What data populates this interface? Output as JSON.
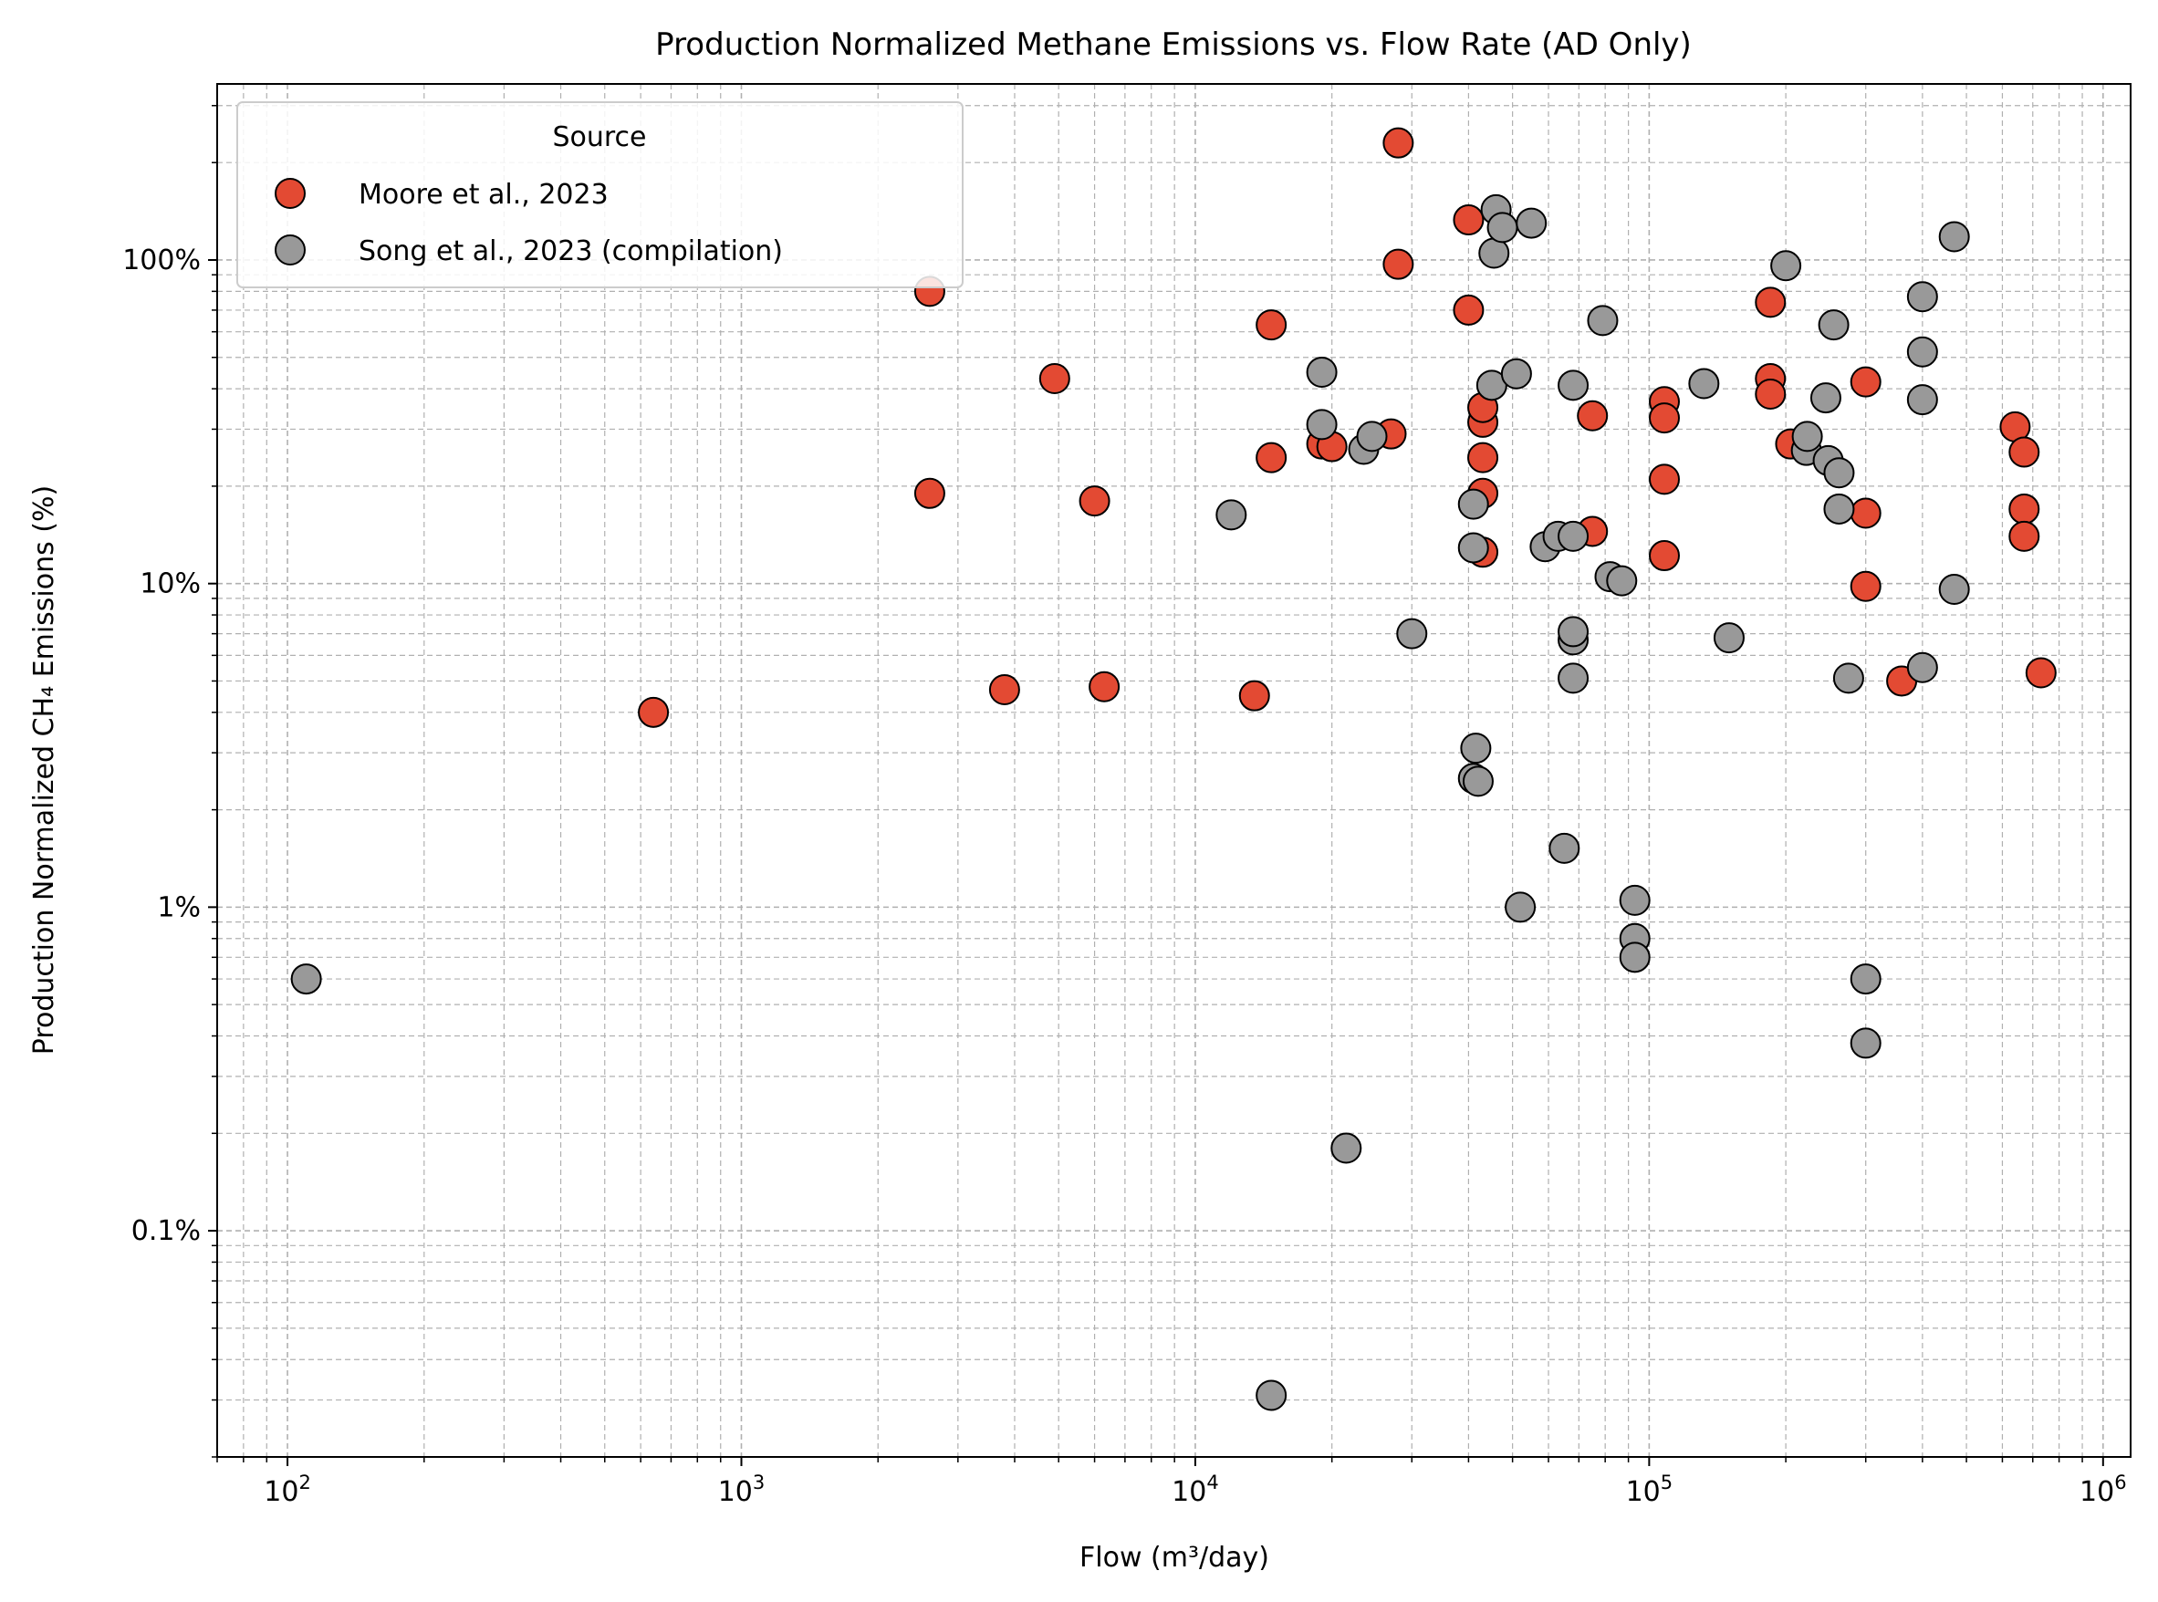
{
  "chart_data": {
    "type": "scatter",
    "title": "Production Normalized Methane Emissions vs. Flow Rate (AD Only)",
    "xlabel": "Flow (m³/day)",
    "ylabel": "Production Normalized CH₄ Emissions (%)",
    "x_scale": "log",
    "y_scale": "log",
    "xlim": [
      70,
      1150000
    ],
    "ylim": [
      0.02,
      350
    ],
    "grid": "both (dashed, major and minor)",
    "legend": {
      "title": "Source",
      "placement": "top-left"
    },
    "x_ticks": [
      {
        "value": 100,
        "base": "10",
        "exp": "2"
      },
      {
        "value": 1000,
        "base": "10",
        "exp": "3"
      },
      {
        "value": 10000,
        "base": "10",
        "exp": "4"
      },
      {
        "value": 100000,
        "base": "10",
        "exp": "5"
      },
      {
        "value": 1000000,
        "base": "10",
        "exp": "6"
      }
    ],
    "y_ticks": [
      {
        "value": 0.1,
        "label": "0.1%"
      },
      {
        "value": 1,
        "label": "1%"
      },
      {
        "value": 10,
        "label": "10%"
      },
      {
        "value": 100,
        "label": "100%"
      }
    ],
    "series": [
      {
        "name": "Moore et al., 2023",
        "color": "#e34a33",
        "points": [
          [
            2600,
            80
          ],
          [
            640,
            4.0
          ],
          [
            2600,
            19
          ],
          [
            3800,
            4.7
          ],
          [
            4900,
            43
          ],
          [
            6000,
            18
          ],
          [
            6300,
            4.8
          ],
          [
            13500,
            4.5
          ],
          [
            14700,
            63
          ],
          [
            14700,
            24.5
          ],
          [
            19000,
            27
          ],
          [
            20000,
            26.5
          ],
          [
            27000,
            29
          ],
          [
            28000,
            230
          ],
          [
            28000,
            97
          ],
          [
            40000,
            133
          ],
          [
            40000,
            70
          ],
          [
            43000,
            12.5
          ],
          [
            43000,
            19
          ],
          [
            43000,
            24.5
          ],
          [
            43000,
            31.5
          ],
          [
            43000,
            35
          ],
          [
            75000,
            33
          ],
          [
            75000,
            14.5
          ],
          [
            108000,
            36.5
          ],
          [
            108000,
            32.5
          ],
          [
            108000,
            21
          ],
          [
            108000,
            12.2
          ],
          [
            185000,
            74
          ],
          [
            185000,
            43
          ],
          [
            185000,
            38.5
          ],
          [
            205000,
            27
          ],
          [
            300000,
            42
          ],
          [
            300000,
            16.5
          ],
          [
            300000,
            9.8
          ],
          [
            360000,
            5.0
          ],
          [
            640000,
            30.5
          ],
          [
            670000,
            25.5
          ],
          [
            670000,
            17
          ],
          [
            670000,
            14
          ],
          [
            730000,
            5.3
          ]
        ]
      },
      {
        "name": "Song et al., 2023 (compilation)",
        "color": "#999999",
        "points": [
          [
            110,
            0.6
          ],
          [
            12000,
            16.3
          ],
          [
            14700,
            0.031
          ],
          [
            19000,
            45
          ],
          [
            19000,
            31
          ],
          [
            21500,
            0.18
          ],
          [
            23500,
            26
          ],
          [
            24500,
            28.5
          ],
          [
            30000,
            7.0
          ],
          [
            41000,
            12.9
          ],
          [
            41000,
            17.6
          ],
          [
            41000,
            2.5
          ],
          [
            41500,
            3.1
          ],
          [
            42000,
            2.45
          ],
          [
            45000,
            41
          ],
          [
            45500,
            105
          ],
          [
            46000,
            143
          ],
          [
            47500,
            126
          ],
          [
            51000,
            44.5
          ],
          [
            52000,
            1.0
          ],
          [
            55000,
            130
          ],
          [
            59000,
            13
          ],
          [
            63000,
            14
          ],
          [
            65000,
            1.52
          ],
          [
            68000,
            41
          ],
          [
            68000,
            14
          ],
          [
            68000,
            6.7
          ],
          [
            68000,
            7.1
          ],
          [
            68000,
            5.1
          ],
          [
            79000,
            65
          ],
          [
            82000,
            10.5
          ],
          [
            87000,
            10.2
          ],
          [
            93000,
            1.05
          ],
          [
            93000,
            0.8
          ],
          [
            93000,
            0.7
          ],
          [
            132000,
            41.5
          ],
          [
            150000,
            6.8
          ],
          [
            200000,
            96
          ],
          [
            222000,
            25.8
          ],
          [
            223000,
            28.5
          ],
          [
            245000,
            37.5
          ],
          [
            248000,
            24
          ],
          [
            255000,
            63
          ],
          [
            262000,
            22
          ],
          [
            262000,
            17
          ],
          [
            275000,
            5.1
          ],
          [
            300000,
            0.6
          ],
          [
            300000,
            0.38
          ],
          [
            400000,
            77
          ],
          [
            400000,
            52
          ],
          [
            400000,
            37
          ],
          [
            400000,
            5.5
          ],
          [
            470000,
            118
          ],
          [
            470000,
            9.6
          ]
        ]
      }
    ]
  }
}
